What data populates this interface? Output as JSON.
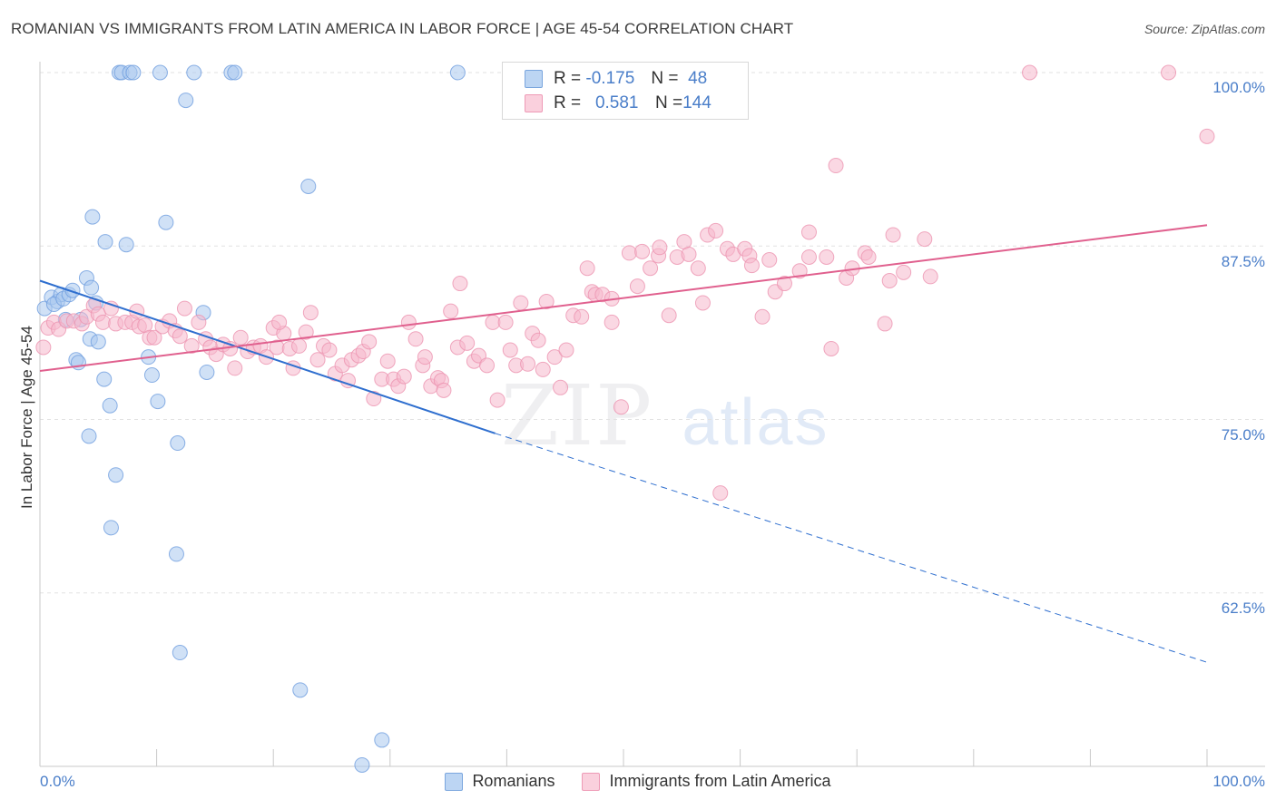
{
  "title": "ROMANIAN VS IMMIGRANTS FROM LATIN AMERICA IN LABOR FORCE | AGE 45-54 CORRELATION CHART",
  "source": "Source: ZipAtlas.com",
  "watermark": {
    "zip": "ZIP",
    "atlas": "atlas"
  },
  "legend": {
    "rows": [
      {
        "r_label": "R =",
        "r_value": "-0.175",
        "n_label": "N =",
        "n_value": "48"
      },
      {
        "r_label": "R =",
        "r_value": "0.581",
        "n_label": "N =",
        "n_value": "144"
      }
    ]
  },
  "colors": {
    "blue": "#4a7ec9",
    "blue_fill": "#a9c8ef",
    "blue_line": "#2f6fcf",
    "pink_fill": "#f6b8cc",
    "pink_line": "#e0608e",
    "grid": "#e2e2e2"
  },
  "chart_data": {
    "type": "scatter",
    "title": "ROMANIAN VS IMMIGRANTS FROM LATIN AMERICA IN LABOR FORCE | AGE 45-54 CORRELATION CHART",
    "xlabel": "",
    "ylabel": "In Labor Force | Age 45-54",
    "xlim": [
      0,
      100
    ],
    "ylim": [
      50,
      100
    ],
    "x_tick_labels": [
      "0.0%",
      "100.0%"
    ],
    "y_ticks": [
      100,
      87.5,
      75,
      62.5
    ],
    "y_tick_labels": [
      "100.0%",
      "87.5%",
      "75.0%",
      "62.5%"
    ],
    "legend_position": "bottom-center",
    "series": [
      {
        "name": "Romanians",
        "r": -0.175,
        "n": 48,
        "trend": {
          "x0": 0,
          "y0": 85.0,
          "x1": 39,
          "y1": 74.0,
          "dash_x1": 100,
          "dash_y1": 57.5
        },
        "points": [
          [
            0.4,
            83.0
          ],
          [
            1.0,
            83.8
          ],
          [
            1.5,
            83.5
          ],
          [
            1.8,
            84.0
          ],
          [
            1.2,
            83.3
          ],
          [
            2.0,
            83.7
          ],
          [
            2.5,
            84.0
          ],
          [
            2.8,
            84.3
          ],
          [
            3.1,
            79.3
          ],
          [
            3.3,
            79.1
          ],
          [
            3.5,
            82.2
          ],
          [
            4.0,
            85.2
          ],
          [
            4.3,
            80.8
          ],
          [
            4.4,
            84.5
          ],
          [
            4.8,
            83.4
          ],
          [
            5.0,
            80.6
          ],
          [
            5.5,
            77.9
          ],
          [
            6.0,
            76.0
          ],
          [
            6.5,
            71.0
          ],
          [
            6.1,
            67.2
          ],
          [
            4.2,
            73.8
          ],
          [
            4.5,
            89.6
          ],
          [
            5.6,
            87.8
          ],
          [
            7.4,
            87.6
          ],
          [
            9.3,
            79.5
          ],
          [
            9.6,
            78.2
          ],
          [
            10.1,
            76.3
          ],
          [
            10.8,
            89.2
          ],
          [
            11.8,
            73.3
          ],
          [
            11.7,
            65.3
          ],
          [
            12.0,
            58.2
          ],
          [
            12.5,
            98.0
          ],
          [
            14.3,
            78.4
          ],
          [
            14.0,
            82.7
          ],
          [
            6.8,
            100.0
          ],
          [
            7.0,
            100.0
          ],
          [
            7.7,
            100.0
          ],
          [
            8.0,
            100.0
          ],
          [
            10.3,
            100.0
          ],
          [
            13.2,
            100.0
          ],
          [
            16.4,
            100.0
          ],
          [
            16.7,
            100.0
          ],
          [
            23.0,
            91.8
          ],
          [
            22.3,
            55.5
          ],
          [
            27.6,
            50.1
          ],
          [
            29.3,
            51.9
          ],
          [
            35.8,
            100.0
          ],
          [
            2.2,
            82.2
          ]
        ]
      },
      {
        "name": "Immigrants from Latin America",
        "r": 0.581,
        "n": 144,
        "trend": {
          "x0": 0,
          "y0": 78.5,
          "x1": 100,
          "y1": 89.0
        },
        "points": [
          [
            0.3,
            80.2
          ],
          [
            0.7,
            81.6
          ],
          [
            1.2,
            82.0
          ],
          [
            1.6,
            81.5
          ],
          [
            2.3,
            82.1
          ],
          [
            2.9,
            82.1
          ],
          [
            3.6,
            81.9
          ],
          [
            4.0,
            82.4
          ],
          [
            4.6,
            83.2
          ],
          [
            5.0,
            82.6
          ],
          [
            5.4,
            82.0
          ],
          [
            6.1,
            83.0
          ],
          [
            6.5,
            81.9
          ],
          [
            7.3,
            82.0
          ],
          [
            7.9,
            82.0
          ],
          [
            8.3,
            82.8
          ],
          [
            8.5,
            81.7
          ],
          [
            9.0,
            81.8
          ],
          [
            9.4,
            80.9
          ],
          [
            9.8,
            80.9
          ],
          [
            10.5,
            81.7
          ],
          [
            11.1,
            82.1
          ],
          [
            11.6,
            81.4
          ],
          [
            12.0,
            81.0
          ],
          [
            12.4,
            83.0
          ],
          [
            13.0,
            80.3
          ],
          [
            13.6,
            82.0
          ],
          [
            14.2,
            80.8
          ],
          [
            14.6,
            80.2
          ],
          [
            15.1,
            79.7
          ],
          [
            15.7,
            80.4
          ],
          [
            16.3,
            80.1
          ],
          [
            16.7,
            78.7
          ],
          [
            17.2,
            80.9
          ],
          [
            17.8,
            79.9
          ],
          [
            18.3,
            80.2
          ],
          [
            18.9,
            80.3
          ],
          [
            19.4,
            79.5
          ],
          [
            20.0,
            81.6
          ],
          [
            20.3,
            80.2
          ],
          [
            20.9,
            81.2
          ],
          [
            21.4,
            80.1
          ],
          [
            21.7,
            78.7
          ],
          [
            22.2,
            80.3
          ],
          [
            22.8,
            81.3
          ],
          [
            23.2,
            82.7
          ],
          [
            23.8,
            79.3
          ],
          [
            24.3,
            80.3
          ],
          [
            24.8,
            80.0
          ],
          [
            25.3,
            78.3
          ],
          [
            25.9,
            78.9
          ],
          [
            26.4,
            77.8
          ],
          [
            26.7,
            79.3
          ],
          [
            27.3,
            79.6
          ],
          [
            27.7,
            79.9
          ],
          [
            28.2,
            80.6
          ],
          [
            28.6,
            76.5
          ],
          [
            29.3,
            77.9
          ],
          [
            29.8,
            79.2
          ],
          [
            30.3,
            77.9
          ],
          [
            30.7,
            77.4
          ],
          [
            31.2,
            78.1
          ],
          [
            31.6,
            82.0
          ],
          [
            32.2,
            80.8
          ],
          [
            32.8,
            78.9
          ],
          [
            33.0,
            79.5
          ],
          [
            33.5,
            77.4
          ],
          [
            34.1,
            78.0
          ],
          [
            34.4,
            77.8
          ],
          [
            34.6,
            77.1
          ],
          [
            35.2,
            82.8
          ],
          [
            35.8,
            80.2
          ],
          [
            36.0,
            84.8
          ],
          [
            36.6,
            80.5
          ],
          [
            37.2,
            79.2
          ],
          [
            37.6,
            79.6
          ],
          [
            38.3,
            78.9
          ],
          [
            38.8,
            82.0
          ],
          [
            39.2,
            76.4
          ],
          [
            39.9,
            82.0
          ],
          [
            40.3,
            80.0
          ],
          [
            40.8,
            78.9
          ],
          [
            41.2,
            83.4
          ],
          [
            41.8,
            79.0
          ],
          [
            42.2,
            81.2
          ],
          [
            42.7,
            80.7
          ],
          [
            43.1,
            78.6
          ],
          [
            43.4,
            83.5
          ],
          [
            44.1,
            79.5
          ],
          [
            44.6,
            77.3
          ],
          [
            45.1,
            80.0
          ],
          [
            45.7,
            82.5
          ],
          [
            46.4,
            82.4
          ],
          [
            46.9,
            85.9
          ],
          [
            47.3,
            84.2
          ],
          [
            47.6,
            84.0
          ],
          [
            48.2,
            84.0
          ],
          [
            49.0,
            82.0
          ],
          [
            49.0,
            83.7
          ],
          [
            49.8,
            75.9
          ],
          [
            50.5,
            87.0
          ],
          [
            51.2,
            84.6
          ],
          [
            51.6,
            87.1
          ],
          [
            52.3,
            85.9
          ],
          [
            53.0,
            86.8
          ],
          [
            53.1,
            87.4
          ],
          [
            53.9,
            82.5
          ],
          [
            54.6,
            86.7
          ],
          [
            55.2,
            87.8
          ],
          [
            55.6,
            86.9
          ],
          [
            56.4,
            85.9
          ],
          [
            56.8,
            83.4
          ],
          [
            57.2,
            88.3
          ],
          [
            57.9,
            88.6
          ],
          [
            58.9,
            87.3
          ],
          [
            59.4,
            86.9
          ],
          [
            60.4,
            87.3
          ],
          [
            60.8,
            86.8
          ],
          [
            61.0,
            86.1
          ],
          [
            61.9,
            82.4
          ],
          [
            62.5,
            86.5
          ],
          [
            63.0,
            84.2
          ],
          [
            63.8,
            84.8
          ],
          [
            65.1,
            85.7
          ],
          [
            65.9,
            88.5
          ],
          [
            65.9,
            86.7
          ],
          [
            67.4,
            86.7
          ],
          [
            67.8,
            80.1
          ],
          [
            68.2,
            93.3
          ],
          [
            69.1,
            85.2
          ],
          [
            69.6,
            85.9
          ],
          [
            70.7,
            87.0
          ],
          [
            71.0,
            86.7
          ],
          [
            72.4,
            81.9
          ],
          [
            72.8,
            85.0
          ],
          [
            73.1,
            88.3
          ],
          [
            74.0,
            85.6
          ],
          [
            75.8,
            88.0
          ],
          [
            76.3,
            85.3
          ],
          [
            58.3,
            69.7
          ],
          [
            84.8,
            100.0
          ],
          [
            96.7,
            100.0
          ],
          [
            100.0,
            95.4
          ],
          [
            20.5,
            82.0
          ]
        ]
      }
    ]
  }
}
